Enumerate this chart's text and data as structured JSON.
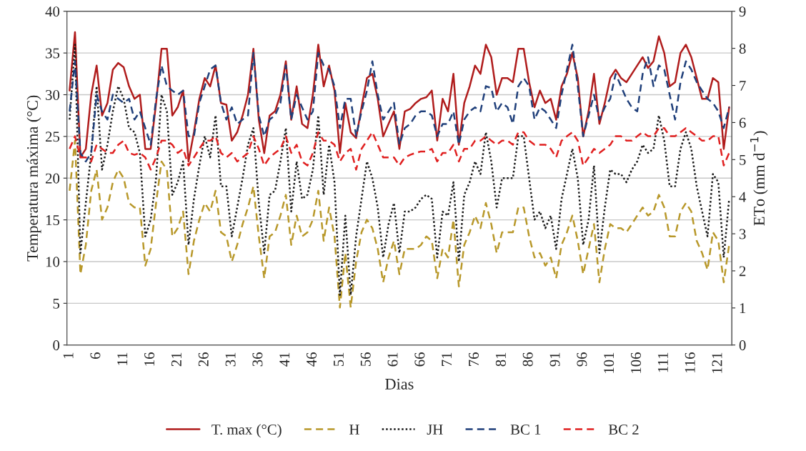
{
  "chart_data": {
    "type": "line",
    "xlabel": "Dias",
    "ylabel": "Temperatura máxima (°C)",
    "y2label": "ETo (mm d$^{−1}$)",
    "categories": [
      "1",
      null,
      null,
      null,
      null,
      "6",
      null,
      null,
      null,
      null,
      "11",
      null,
      null,
      null,
      null,
      "16",
      null,
      null,
      null,
      null,
      "21",
      null,
      null,
      null,
      null,
      "26",
      null,
      null,
      null,
      null,
      "31",
      null,
      null,
      null,
      null,
      "36",
      null,
      null,
      null,
      null,
      "41",
      null,
      null,
      null,
      null,
      "46",
      null,
      null,
      null,
      null,
      "51",
      null,
      null,
      null,
      null,
      "56",
      null,
      null,
      null,
      null,
      "61",
      null,
      null,
      null,
      null,
      "66",
      null,
      null,
      null,
      null,
      "71",
      null,
      null,
      null,
      null,
      "76",
      null,
      null,
      null,
      null,
      "81",
      null,
      null,
      null,
      null,
      "86",
      null,
      null,
      null,
      null,
      "91",
      null,
      null,
      null,
      null,
      "96",
      null,
      null,
      null,
      null,
      "101",
      null,
      null,
      null,
      null,
      "106",
      null,
      null,
      null,
      null,
      "111",
      null,
      null,
      null,
      null,
      "116",
      null,
      null,
      null,
      null,
      "121",
      null,
      null
    ],
    "ylim": [
      0,
      40
    ],
    "yticks": [
      0,
      5,
      10,
      15,
      20,
      25,
      30,
      35,
      40
    ],
    "y2lim": [
      0,
      9
    ],
    "y2ticks": [
      0,
      1,
      2,
      3,
      4,
      5,
      6,
      7,
      8,
      9
    ],
    "grid": "y",
    "legend": "bottom",
    "marker": "none",
    "series": [
      {
        "name": "T. max (°C)",
        "color": "#b01c1c",
        "line_style": "solid",
        "values": [
          30.5,
          37.5,
          22.5,
          23.5,
          30,
          33.5,
          27.5,
          29,
          33,
          33.8,
          33.3,
          31,
          29.5,
          30,
          23.5,
          23.5,
          29,
          35.5,
          35.5,
          27.5,
          28.5,
          30.5,
          22,
          25.5,
          29.5,
          32,
          31,
          33.5,
          29,
          28.8,
          24.5,
          25.5,
          27.5,
          30,
          35.5,
          27,
          23,
          27.5,
          28,
          30,
          34,
          27,
          31,
          26.5,
          26,
          30,
          36,
          31,
          33.5,
          30.5,
          23,
          29,
          25.5,
          24.8,
          28.5,
          32,
          32.5,
          29.5,
          25,
          26.5,
          28,
          23.5,
          28,
          28.3,
          29,
          29.5,
          29.7,
          30.5,
          24.5,
          29.5,
          28,
          32.5,
          24,
          29,
          31,
          33.5,
          32.5,
          36,
          34.5,
          30,
          32,
          32,
          31.5,
          35.5,
          35.5,
          31.5,
          28.5,
          30.5,
          29,
          29.5,
          27,
          31,
          32.5,
          35,
          32,
          25,
          28,
          32.5,
          26.5,
          29,
          32,
          33,
          32,
          31.5,
          32.5,
          33.5,
          34.5,
          33.2,
          34,
          37,
          35,
          31,
          31.5,
          35,
          36,
          34.5,
          32,
          29.5,
          29.5,
          32,
          31.5,
          23.5,
          28.5
        ]
      },
      {
        "name": "H",
        "color": "#b8982a",
        "line_style": "dashed",
        "axis": "y2",
        "values": [
          4.16,
          5.51,
          1.91,
          2.7,
          4.16,
          4.73,
          3.38,
          3.71,
          4.39,
          4.73,
          4.5,
          3.83,
          3.71,
          3.71,
          2.14,
          2.59,
          3.83,
          4.95,
          4.73,
          2.93,
          3.15,
          3.6,
          1.91,
          2.81,
          3.38,
          3.83,
          3.6,
          4.16,
          3.04,
          2.93,
          2.25,
          2.7,
          3.26,
          3.71,
          4.28,
          2.93,
          1.8,
          2.93,
          3.04,
          3.49,
          4.05,
          2.7,
          3.49,
          2.93,
          3.04,
          3.38,
          4.16,
          2.81,
          3.71,
          2.93,
          1.01,
          2.48,
          1.01,
          2.25,
          3.04,
          3.38,
          3.15,
          2.59,
          1.69,
          2.36,
          2.81,
          1.91,
          2.59,
          2.59,
          2.59,
          2.7,
          2.93,
          2.81,
          1.8,
          2.59,
          2.36,
          3.38,
          1.58,
          2.7,
          3.04,
          3.49,
          3.15,
          3.83,
          3.26,
          2.48,
          3.04,
          3.04,
          3.04,
          3.71,
          3.71,
          2.93,
          2.36,
          2.48,
          2.14,
          2.36,
          1.8,
          2.7,
          3.04,
          3.49,
          2.81,
          1.91,
          2.59,
          3.26,
          1.69,
          2.59,
          3.26,
          3.15,
          3.15,
          3.04,
          3.26,
          3.49,
          3.71,
          3.49,
          3.6,
          4.05,
          3.71,
          2.93,
          2.93,
          3.6,
          3.83,
          3.6,
          2.81,
          2.48,
          2.03,
          3.04,
          2.81,
          1.69,
          2.7
        ]
      },
      {
        "name": "JH",
        "color": "#1a1a1a",
        "line_style": "dotted",
        "axis": "y2",
        "values": [
          6.08,
          8.1,
          2.48,
          3.83,
          5.18,
          6.98,
          4.73,
          5.4,
          6.3,
          6.98,
          6.64,
          5.85,
          5.74,
          5.18,
          2.93,
          3.38,
          4.5,
          6.75,
          6.3,
          4.05,
          4.39,
          4.95,
          2.7,
          3.94,
          4.84,
          5.63,
          5.06,
          6.19,
          4.28,
          4.28,
          2.93,
          3.71,
          4.5,
          5.4,
          5.85,
          3.83,
          2.48,
          4.05,
          4.16,
          4.95,
          5.85,
          3.6,
          4.95,
          3.94,
          4.05,
          4.73,
          6.19,
          4.05,
          5.4,
          4.39,
          1.35,
          3.49,
          1.35,
          2.93,
          3.94,
          4.95,
          4.5,
          3.71,
          2.36,
          3.26,
          3.83,
          2.48,
          3.6,
          3.6,
          3.71,
          3.94,
          4.05,
          3.94,
          2.36,
          3.6,
          3.49,
          4.39,
          2.25,
          4.05,
          4.39,
          4.95,
          4.61,
          5.74,
          4.95,
          3.71,
          4.5,
          4.5,
          4.5,
          5.63,
          5.63,
          4.5,
          3.38,
          3.6,
          3.15,
          3.49,
          2.59,
          3.94,
          4.61,
          5.29,
          4.5,
          2.7,
          3.38,
          4.84,
          2.48,
          3.71,
          4.73,
          4.61,
          4.61,
          4.39,
          4.73,
          4.95,
          5.4,
          5.18,
          5.29,
          6.19,
          5.51,
          4.28,
          4.28,
          5.29,
          5.74,
          5.29,
          4.28,
          3.6,
          2.93,
          4.61,
          4.39,
          2.36,
          3.94
        ]
      },
      {
        "name": "BC 1",
        "color": "#1f3f7a",
        "line_style": "dashed",
        "axis": "y2",
        "values": [
          6.3,
          7.65,
          5.18,
          4.95,
          5.18,
          6.75,
          6.3,
          6.08,
          6.75,
          6.64,
          6.53,
          6.64,
          6.08,
          6.3,
          5.85,
          5.4,
          6.64,
          7.54,
          6.98,
          6.86,
          6.75,
          6.86,
          5.63,
          5.63,
          6.53,
          6.98,
          7.43,
          7.54,
          6.53,
          6.08,
          6.41,
          5.96,
          6.08,
          6.19,
          7.88,
          6.19,
          5.63,
          6.08,
          6.19,
          6.53,
          7.54,
          6.08,
          6.75,
          6.41,
          6.08,
          6.3,
          7.88,
          7.54,
          7.43,
          6.98,
          5.85,
          6.64,
          6.64,
          5.63,
          6.3,
          6.86,
          7.65,
          6.75,
          6.08,
          6.3,
          6.53,
          5.4,
          5.85,
          5.96,
          6.19,
          6.3,
          6.3,
          6.19,
          5.63,
          5.96,
          5.96,
          6.3,
          5.4,
          6.08,
          6.3,
          6.41,
          6.3,
          6.98,
          6.93,
          6.3,
          6.53,
          6.41,
          5.96,
          6.98,
          7.2,
          6.98,
          6.08,
          6.41,
          6.3,
          6.08,
          5.85,
          6.75,
          7.43,
          8.1,
          6.98,
          5.63,
          6.19,
          6.75,
          6.08,
          6.41,
          6.64,
          7.31,
          6.98,
          6.64,
          6.41,
          6.3,
          7.31,
          7.76,
          6.98,
          7.54,
          7.43,
          6.75,
          6.08,
          7.09,
          7.65,
          7.43,
          7.09,
          6.86,
          6.64,
          6.53,
          6.3,
          5.85,
          6.41
        ]
      },
      {
        "name": "BC 2",
        "color": "#e02020",
        "line_style": "dashed",
        "axis": "y2",
        "values": [
          5.29,
          5.63,
          5.06,
          5.06,
          4.95,
          5.4,
          5.29,
          5.18,
          5.18,
          5.4,
          5.51,
          5.18,
          5.13,
          5.18,
          5.06,
          4.73,
          5.06,
          5.51,
          5.51,
          5.4,
          5.18,
          5.29,
          4.84,
          5.06,
          5.29,
          5.51,
          5.51,
          5.63,
          5.18,
          5.06,
          5.18,
          4.95,
          5.06,
          5.18,
          5.63,
          5.29,
          4.84,
          5.06,
          5.18,
          5.29,
          5.63,
          5.18,
          5.4,
          4.95,
          4.84,
          5.18,
          5.74,
          5.51,
          5.51,
          5.4,
          4.95,
          5.18,
          5.29,
          4.73,
          5.29,
          5.51,
          5.74,
          5.4,
          5.06,
          5.06,
          5.06,
          4.84,
          5.06,
          5.13,
          5.18,
          5.22,
          5.22,
          5.29,
          4.95,
          5.18,
          5.18,
          5.4,
          4.95,
          5.29,
          5.29,
          5.51,
          5.51,
          5.63,
          5.51,
          5.4,
          5.51,
          5.51,
          5.4,
          5.74,
          5.74,
          5.51,
          5.4,
          5.4,
          5.4,
          5.29,
          5.06,
          5.51,
          5.63,
          5.74,
          5.51,
          4.84,
          5.06,
          5.29,
          5.18,
          5.29,
          5.4,
          5.63,
          5.63,
          5.51,
          5.51,
          5.63,
          5.74,
          5.63,
          5.63,
          5.85,
          5.85,
          5.63,
          5.63,
          5.74,
          5.85,
          5.74,
          5.63,
          5.51,
          5.51,
          5.63,
          5.63,
          4.84,
          5.18
        ]
      }
    ]
  }
}
